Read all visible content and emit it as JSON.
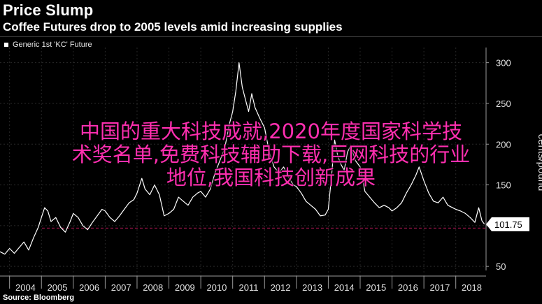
{
  "header": {
    "title": "Price Slump",
    "subtitle": "Coffee Futures drop to 2005 levels amid increasing supplies"
  },
  "legend": {
    "label": "Generic 1st 'KC' Future"
  },
  "footer": {
    "source": "Source: Bloomberg"
  },
  "overlay": {
    "text": "中国的重大科技成就,2020年度国家科学技\n术奖名单,免费科技辅助下载,巨网科技的行业\n地位,我国科技创新成果"
  },
  "colors": {
    "background": "#000000",
    "line": "#ffffff",
    "reference_line": "#c2185b",
    "overlay_text": "#ff2fb0"
  },
  "chart_data": {
    "type": "line",
    "ylabel": "cents/pound",
    "xlim": [
      2003.7,
      2018.95
    ],
    "ylim": [
      45,
      310
    ],
    "x_ticks": [
      "2004",
      "2005",
      "2006",
      "2007",
      "2008",
      "2009",
      "2010",
      "2011",
      "2012",
      "2013",
      "2014",
      "2015",
      "2016",
      "2017",
      "2018"
    ],
    "y_ticks": [
      50,
      100,
      150,
      200,
      250,
      300
    ],
    "last_value_label": "101.75",
    "reference_line_y": 97,
    "series": [
      {
        "values": [
          [
            2003.7,
            68
          ],
          [
            2003.85,
            65
          ],
          [
            2004.0,
            72
          ],
          [
            2004.15,
            66
          ],
          [
            2004.3,
            73
          ],
          [
            2004.45,
            80
          ],
          [
            2004.6,
            70
          ],
          [
            2004.75,
            85
          ],
          [
            2004.9,
            98
          ],
          [
            2005.0,
            110
          ],
          [
            2005.1,
            122
          ],
          [
            2005.2,
            118
          ],
          [
            2005.3,
            105
          ],
          [
            2005.45,
            110
          ],
          [
            2005.6,
            98
          ],
          [
            2005.75,
            92
          ],
          [
            2005.9,
            105
          ],
          [
            2006.0,
            115
          ],
          [
            2006.15,
            110
          ],
          [
            2006.3,
            100
          ],
          [
            2006.45,
            95
          ],
          [
            2006.6,
            104
          ],
          [
            2006.75,
            112
          ],
          [
            2006.9,
            120
          ],
          [
            2007.0,
            118
          ],
          [
            2007.15,
            110
          ],
          [
            2007.3,
            105
          ],
          [
            2007.45,
            112
          ],
          [
            2007.6,
            120
          ],
          [
            2007.75,
            128
          ],
          [
            2007.9,
            132
          ],
          [
            2008.0,
            140
          ],
          [
            2008.15,
            158
          ],
          [
            2008.25,
            145
          ],
          [
            2008.4,
            138
          ],
          [
            2008.55,
            150
          ],
          [
            2008.7,
            138
          ],
          [
            2008.85,
            112
          ],
          [
            2009.0,
            115
          ],
          [
            2009.15,
            120
          ],
          [
            2009.3,
            135
          ],
          [
            2009.45,
            130
          ],
          [
            2009.6,
            125
          ],
          [
            2009.75,
            135
          ],
          [
            2009.9,
            140
          ],
          [
            2010.0,
            142
          ],
          [
            2010.15,
            135
          ],
          [
            2010.3,
            145
          ],
          [
            2010.45,
            165
          ],
          [
            2010.6,
            180
          ],
          [
            2010.75,
            195
          ],
          [
            2010.9,
            225
          ],
          [
            2011.0,
            240
          ],
          [
            2011.1,
            265
          ],
          [
            2011.2,
            300
          ],
          [
            2011.3,
            270
          ],
          [
            2011.4,
            255
          ],
          [
            2011.5,
            240
          ],
          [
            2011.6,
            262
          ],
          [
            2011.7,
            245
          ],
          [
            2011.85,
            232
          ],
          [
            2012.0,
            220
          ],
          [
            2012.15,
            190
          ],
          [
            2012.3,
            172
          ],
          [
            2012.45,
            165
          ],
          [
            2012.6,
            172
          ],
          [
            2012.75,
            160
          ],
          [
            2012.9,
            150
          ],
          [
            2013.0,
            148
          ],
          [
            2013.15,
            140
          ],
          [
            2013.3,
            130
          ],
          [
            2013.45,
            125
          ],
          [
            2013.6,
            120
          ],
          [
            2013.75,
            112
          ],
          [
            2013.9,
            113
          ],
          [
            2014.0,
            120
          ],
          [
            2014.1,
            160
          ],
          [
            2014.2,
            205
          ],
          [
            2014.3,
            185
          ],
          [
            2014.4,
            175
          ],
          [
            2014.5,
            168
          ],
          [
            2014.6,
            190
          ],
          [
            2014.7,
            198
          ],
          [
            2014.85,
            180
          ],
          [
            2015.0,
            172
          ],
          [
            2015.15,
            142
          ],
          [
            2015.3,
            135
          ],
          [
            2015.45,
            128
          ],
          [
            2015.6,
            122
          ],
          [
            2015.75,
            125
          ],
          [
            2015.9,
            122
          ],
          [
            2016.0,
            118
          ],
          [
            2016.15,
            122
          ],
          [
            2016.3,
            128
          ],
          [
            2016.45,
            140
          ],
          [
            2016.6,
            150
          ],
          [
            2016.75,
            162
          ],
          [
            2016.85,
            172
          ],
          [
            2017.0,
            155
          ],
          [
            2017.15,
            140
          ],
          [
            2017.3,
            130
          ],
          [
            2017.45,
            128
          ],
          [
            2017.6,
            135
          ],
          [
            2017.75,
            125
          ],
          [
            2017.9,
            122
          ],
          [
            2018.0,
            120
          ],
          [
            2018.15,
            118
          ],
          [
            2018.3,
            115
          ],
          [
            2018.45,
            110
          ],
          [
            2018.6,
            104
          ],
          [
            2018.72,
            122
          ],
          [
            2018.82,
            106
          ],
          [
            2018.9,
            101.75
          ]
        ]
      }
    ]
  }
}
